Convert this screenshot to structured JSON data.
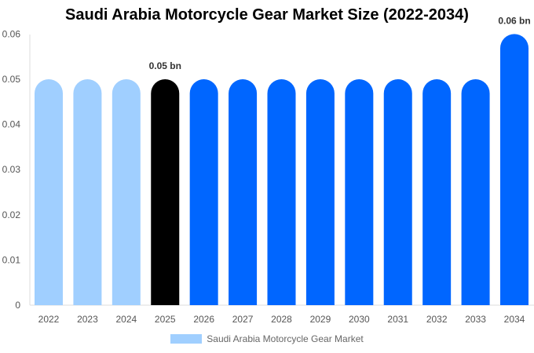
{
  "chart_data": {
    "type": "bar",
    "title": "Saudi Arabia Motorcycle Gear Market Size (2022-2034)",
    "categories": [
      "2022",
      "2023",
      "2024",
      "2025",
      "2026",
      "2027",
      "2028",
      "2029",
      "2030",
      "2031",
      "2032",
      "2033",
      "2034"
    ],
    "series": [
      {
        "name": "Saudi Arabia Motorcycle Gear Market",
        "values": [
          0.05,
          0.05,
          0.05,
          0.05,
          0.05,
          0.05,
          0.05,
          0.05,
          0.05,
          0.05,
          0.05,
          0.05,
          0.06
        ]
      }
    ],
    "bar_colors": [
      "#a0cfff",
      "#a0cfff",
      "#a0cfff",
      "#000000",
      "#0066ff",
      "#0066ff",
      "#0066ff",
      "#0066ff",
      "#0066ff",
      "#0066ff",
      "#0066ff",
      "#0066ff",
      "#0066ff"
    ],
    "legend_color": "#a0cfff",
    "data_labels": [
      {
        "category": "2025",
        "text": "0.05 bn"
      },
      {
        "category": "2034",
        "text": "0.06 bn"
      }
    ],
    "yticks": [
      "0",
      "0.01",
      "0.02",
      "0.03",
      "0.04",
      "0.05",
      "0.06"
    ],
    "ylim": [
      0,
      0.06
    ],
    "xlabel": "",
    "ylabel": "",
    "grid": false,
    "legend_position": "bottom"
  }
}
